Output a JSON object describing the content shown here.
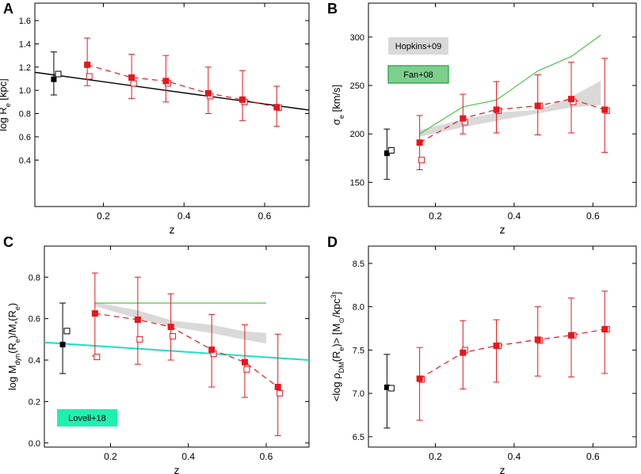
{
  "colors": {
    "red": "#e8161b",
    "black": "#000000",
    "green_line": "#4cc44c",
    "cyan_line": "#1de0c0",
    "band": "#d9d9d9",
    "fan_fill": "#7ecf8e",
    "fan_stroke": "#1aa13a",
    "lovell_fill": "#1ef0b0"
  },
  "chart_data": [
    {
      "panel": "A",
      "type": "scatter",
      "xlabel": "z",
      "ylabel_parts": {
        "pre": "log R",
        "sub": "e",
        "post": " [kpc]"
      },
      "xlim": [
        0.03,
        0.71
      ],
      "ylim": [
        0.0,
        1.75
      ],
      "xticks": [
        0.2,
        0.4,
        0.6
      ],
      "xtick_labels": [
        "0.2",
        "0.4",
        "0.6"
      ],
      "yticks": [
        0.4,
        0.6,
        0.8,
        1.0,
        1.2,
        1.4,
        1.6
      ],
      "ytick_labels": [
        "0.4",
        "0.6",
        "0.8",
        "1.0",
        "1.2",
        "1.4",
        "1.6"
      ],
      "fit_line": {
        "x": [
          0.03,
          0.71
        ],
        "y": [
          1.155,
          0.83
        ]
      },
      "low_z_point": {
        "x": 0.077,
        "y": 1.095,
        "err": [
          0.96,
          1.33
        ]
      },
      "low_z_open": {
        "x": 0.088,
        "y": 1.14
      },
      "red_filled": {
        "x": [
          0.16,
          0.27,
          0.355,
          0.46,
          0.545,
          0.63
        ],
        "y": [
          1.22,
          1.11,
          1.08,
          0.975,
          0.92,
          0.855
        ],
        "err_low": [
          1.04,
          0.93,
          0.9,
          0.8,
          0.74,
          0.69
        ],
        "err_high": [
          1.45,
          1.31,
          1.3,
          1.2,
          1.17,
          1.035
        ]
      },
      "red_open": {
        "x": [
          0.165,
          0.275,
          0.36,
          0.465,
          0.55,
          0.635
        ],
        "y": [
          1.12,
          1.06,
          1.06,
          0.95,
          0.9,
          0.85
        ]
      }
    },
    {
      "panel": "B",
      "type": "scatter",
      "xlabel": "z",
      "ylabel_parts": {
        "pre": "σ",
        "sub": "e",
        "post": " [km/s]"
      },
      "xlim": [
        0.03,
        0.71
      ],
      "ylim": [
        125,
        335
      ],
      "xticks": [
        0.2,
        0.4,
        0.6
      ],
      "xtick_labels": [
        "0.2",
        "0.4",
        "0.6"
      ],
      "yticks": [
        150,
        200,
        250,
        300
      ],
      "ytick_labels": [
        "150",
        "200",
        "250",
        "300"
      ],
      "green_line": {
        "x": [
          0.16,
          0.27,
          0.355,
          0.46,
          0.545,
          0.62
        ],
        "y": [
          200,
          228,
          235,
          265,
          280,
          302
        ]
      },
      "band_upper": {
        "x": [
          0.16,
          0.27,
          0.36,
          0.46,
          0.54,
          0.62
        ],
        "y": [
          204,
          215,
          222,
          225,
          237,
          255
        ]
      },
      "band_lower": {
        "x": [
          0.16,
          0.27,
          0.36,
          0.46,
          0.54,
          0.62
        ],
        "y": [
          197,
          207,
          214,
          221,
          227,
          230
        ]
      },
      "low_z_point": {
        "x": 0.077,
        "y": 180,
        "err": [
          153,
          205
        ]
      },
      "low_z_open": {
        "x": 0.088,
        "y": 183
      },
      "red_filled": {
        "x": [
          0.16,
          0.27,
          0.355,
          0.46,
          0.545,
          0.63
        ],
        "y": [
          191,
          216,
          225,
          229,
          236,
          225
        ],
        "err_low": [
          163,
          200,
          201,
          199,
          201,
          181
        ],
        "err_high": [
          219,
          241,
          254,
          261,
          274,
          278
        ]
      },
      "red_open": {
        "x": [
          0.165,
          0.275,
          0.36,
          0.465,
          0.55,
          0.635
        ],
        "y": [
          173,
          212,
          224,
          229,
          233,
          224
        ]
      },
      "legend": [
        {
          "label": "Hopkins+09",
          "style": "band"
        },
        {
          "label": "Fan+08",
          "style": "green"
        }
      ]
    },
    {
      "panel": "C",
      "type": "scatter",
      "xlabel": "z",
      "ylabel_parts": {
        "pre": "log M",
        "sub1": "dyn",
        "mid": "(R",
        "sub2": "e",
        "mid2": ")/M",
        "sub3": "*",
        "mid3": "(R",
        "sub4": "e",
        "post": ")"
      },
      "xlim": [
        0.03,
        0.71
      ],
      "ylim": [
        -0.02,
        0.95
      ],
      "xticks": [
        0.2,
        0.4,
        0.6
      ],
      "xtick_labels": [
        "0.2",
        "0.4",
        "0.6"
      ],
      "yticks": [
        0.0,
        0.2,
        0.4,
        0.6,
        0.8
      ],
      "ytick_labels": [
        "0.0",
        "0.2",
        "0.4",
        "0.6",
        "0.8"
      ],
      "green_line": {
        "x": [
          0.16,
          0.6
        ],
        "y": [
          0.675,
          0.675
        ]
      },
      "cyan_line": {
        "x": [
          0.03,
          0.71
        ],
        "y": [
          0.485,
          0.4
        ]
      },
      "band_upper": {
        "x": [
          0.16,
          0.27,
          0.36,
          0.46,
          0.54,
          0.6
        ],
        "y": [
          0.68,
          0.64,
          0.59,
          0.57,
          0.54,
          0.53
        ]
      },
      "band_lower": {
        "x": [
          0.16,
          0.27,
          0.36,
          0.46,
          0.54,
          0.6
        ],
        "y": [
          0.66,
          0.6,
          0.56,
          0.53,
          0.5,
          0.48
        ]
      },
      "low_z_point": {
        "x": 0.077,
        "y": 0.475,
        "err": [
          0.335,
          0.675
        ]
      },
      "low_z_open": {
        "x": 0.088,
        "y": 0.54
      },
      "red_filled": {
        "x": [
          0.16,
          0.27,
          0.355,
          0.46,
          0.545,
          0.63
        ],
        "y": [
          0.625,
          0.595,
          0.56,
          0.45,
          0.39,
          0.27
        ],
        "err_low": [
          0.42,
          0.38,
          0.4,
          0.27,
          0.22,
          0.035
        ],
        "err_high": [
          0.82,
          0.8,
          0.72,
          0.62,
          0.57,
          0.525
        ]
      },
      "red_open": {
        "x": [
          0.165,
          0.275,
          0.36,
          0.465,
          0.55,
          0.635
        ],
        "y": [
          0.415,
          0.5,
          0.515,
          0.43,
          0.355,
          0.24
        ]
      },
      "legend": [
        {
          "label": "Lovell+18",
          "style": "cyan"
        }
      ]
    },
    {
      "panel": "D",
      "type": "scatter",
      "xlabel": "z",
      "ylabel_parts": {
        "pre": "<log ρ",
        "sub1": "DM",
        "mid": "(R",
        "sub2": "e",
        "mid2": ")> [M",
        "sub3": "⊙",
        "mid3": "/kpc",
        "sup": "3",
        "post": "]"
      },
      "xlim": [
        0.03,
        0.71
      ],
      "ylim": [
        6.38,
        8.7
      ],
      "xticks": [
        0.2,
        0.4,
        0.6
      ],
      "xtick_labels": [
        "0.2",
        "0.4",
        "0.6"
      ],
      "yticks": [
        6.5,
        7.0,
        7.5,
        8.0,
        8.5
      ],
      "ytick_labels": [
        "6.5",
        "7.0",
        "7.5",
        "8.0",
        "8.5"
      ],
      "low_z_point": {
        "x": 0.077,
        "y": 7.07,
        "err": [
          6.6,
          7.45
        ]
      },
      "low_z_open": {
        "x": 0.088,
        "y": 7.06
      },
      "red_filled": {
        "x": [
          0.16,
          0.27,
          0.355,
          0.46,
          0.545,
          0.63
        ],
        "y": [
          7.17,
          7.47,
          7.55,
          7.62,
          7.67,
          7.74
        ],
        "err_low": [
          6.69,
          7.05,
          7.13,
          7.2,
          7.19,
          7.23
        ],
        "err_high": [
          7.53,
          7.84,
          7.85,
          8.0,
          8.1,
          8.18
        ]
      },
      "red_open": {
        "x": [
          0.165,
          0.275,
          0.36,
          0.465,
          0.55,
          0.635
        ],
        "y": [
          7.16,
          7.5,
          7.55,
          7.61,
          7.67,
          7.74
        ]
      }
    }
  ]
}
